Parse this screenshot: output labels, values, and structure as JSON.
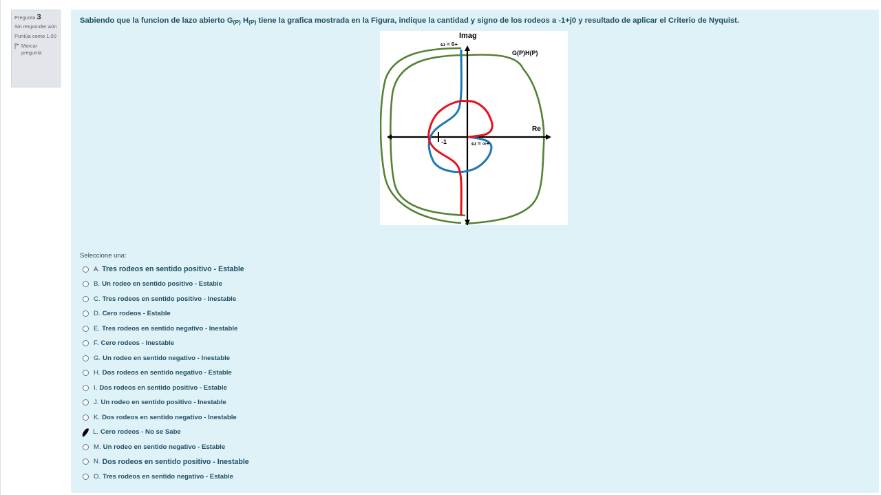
{
  "info": {
    "question_label": "Pregunta",
    "question_number": "3",
    "status": "Sin responder aún",
    "grade": "Puntúa como 1.00",
    "flag": "Marcar pregunta"
  },
  "question": {
    "text_before_g": "Sabiendo que la funcion de lazo abierto G",
    "sub_g": "(P)",
    "h": " H",
    "sub_h": "(P)",
    "text_after": " tiene la grafica mostrada en la Figura, indique la cantidad y signo de los rodeos a -1+j0 y resultado de aplicar el Criterio de Nyquist."
  },
  "figure": {
    "imag_label": "Imag",
    "re_label": "Re",
    "w0_label": "ω = 0+",
    "winf_label": "ω = ∞+",
    "minus_one_label": "-1",
    "gh_label": "G(P)H(P)",
    "colors": {
      "outer": "#548235",
      "blue": "#1f77b4",
      "red": "#e8101a",
      "axis": "#000000"
    }
  },
  "prompt": "Seleccione una:",
  "options": [
    {
      "letter": "A.",
      "text": "Tres rodeos en sentido positivo - Estable"
    },
    {
      "letter": "B.",
      "text": "Un rodeo en sentido positivo - Estable"
    },
    {
      "letter": "C.",
      "text": "Tres rodeos en sentido positivo - Inestable"
    },
    {
      "letter": "D.",
      "text": "Cero rodeos - Estable"
    },
    {
      "letter": "E.",
      "text": "Tres rodeos en sentido negativo - Inestable"
    },
    {
      "letter": "F.",
      "text": "Cero rodeos - Inestable"
    },
    {
      "letter": "G.",
      "text": "Un rodeo en sentido negativo - Inestable"
    },
    {
      "letter": "H.",
      "text": "Dos rodeos en sentido negativo - Estable"
    },
    {
      "letter": "I.",
      "text": "Dos rodeos en sentido positivo - Estable"
    },
    {
      "letter": "J.",
      "text": "Un rodeo en sentido positivo - Inestable"
    },
    {
      "letter": "K.",
      "text": "Dos rodeos en sentido negativo - Inestable"
    },
    {
      "letter": "L.",
      "text": "Cero rodeos - No se Sabe"
    },
    {
      "letter": "M.",
      "text": "Un rodeo en sentido negativo - Estable"
    },
    {
      "letter": "N.",
      "text": "Dos rodeos en sentido positivo - Inestable"
    },
    {
      "letter": "O.",
      "text": "Tres rodeos en sentido negativo - Estable"
    }
  ],
  "marked_option": "L."
}
